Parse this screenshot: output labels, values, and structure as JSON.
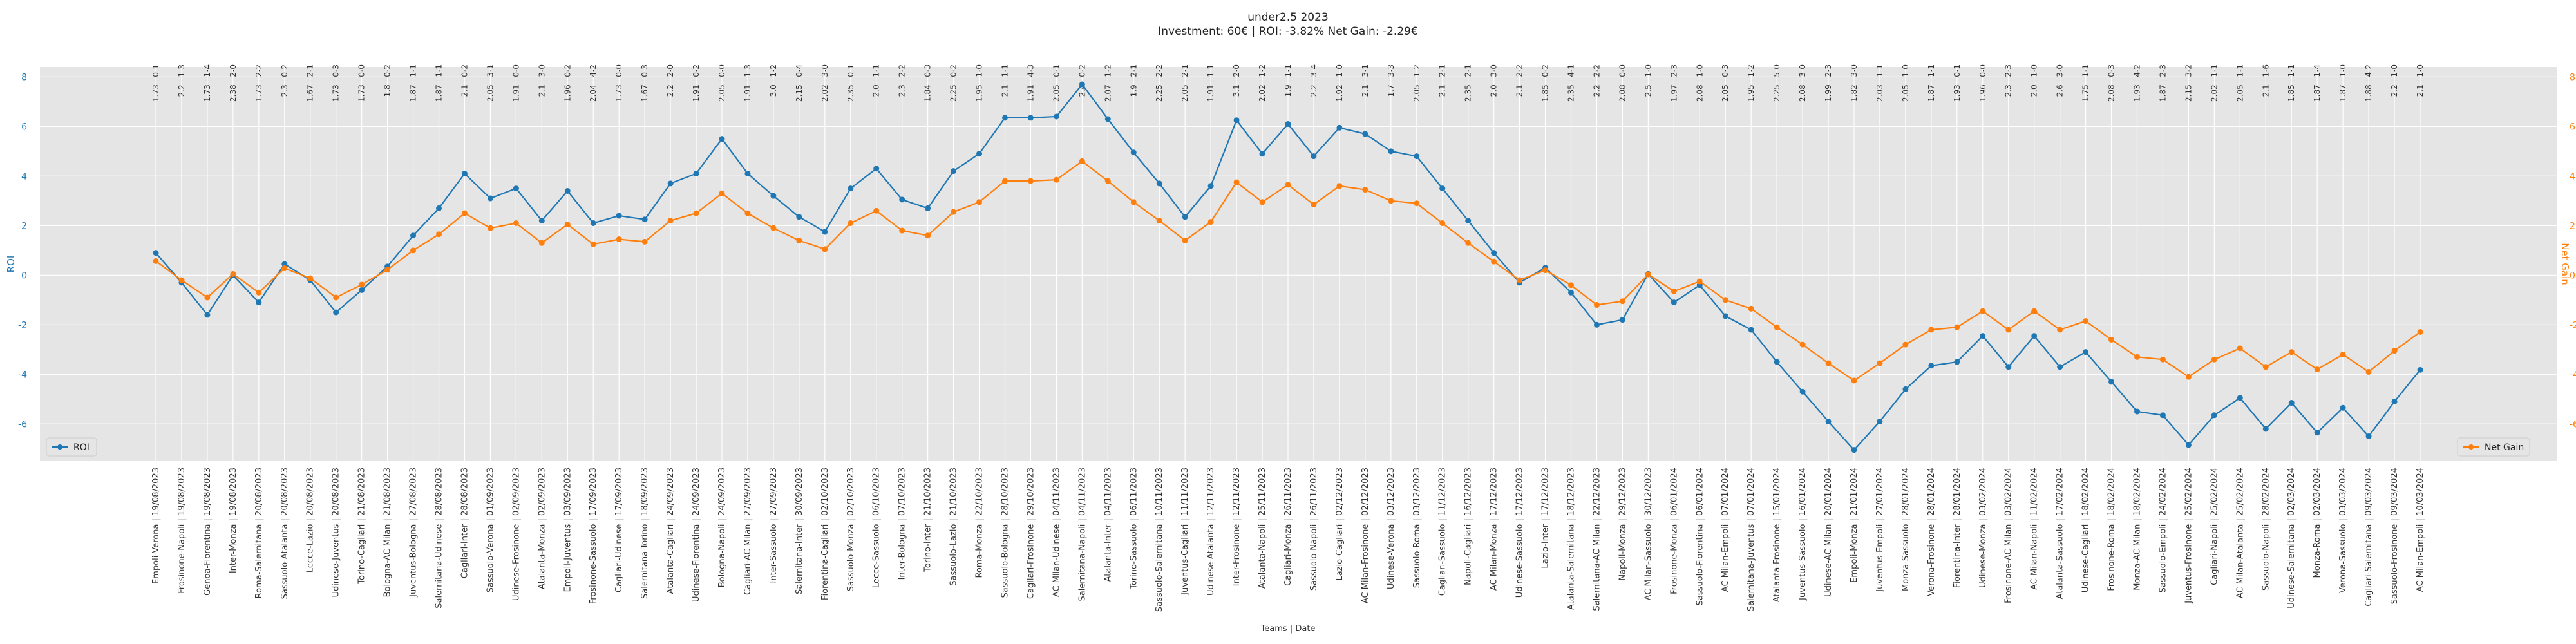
{
  "chart_data": {
    "type": "line",
    "title_line1": "under2.5 2023",
    "title_line2": "Investment: 60€ | ROI: -3.82% Net Gain: -2.29€",
    "xlabel": "Teams | Date",
    "ylabel_left": "ROI",
    "ylabel_right": "Net Gain",
    "ylim": [
      -7.5,
      8.4
    ],
    "yticks": [
      -6,
      -4,
      -2,
      0,
      2,
      4,
      6,
      8
    ],
    "grid": true,
    "legend_left": "bottom-left",
    "legend_right": "bottom-right",
    "colors": {
      "roi": "#1f77b4",
      "net_gain": "#ff7f0e",
      "plot_bg": "#e5e5e5",
      "grid": "#ffffff"
    },
    "matches": [
      {
        "label": "Empoli-Verona | 19/08/2023",
        "odds": "1.73 | 0-1",
        "roi": 0.9,
        "net": 0.57
      },
      {
        "label": "Frosinone-Napoli | 19/08/2023",
        "odds": "2.2 | 1-3",
        "roi": -0.3,
        "net": -0.2
      },
      {
        "label": "Genoa-Fiorentina | 19/08/2023",
        "odds": "1.73 | 1-4",
        "roi": -1.6,
        "net": -0.9
      },
      {
        "label": "Inter-Monza | 19/08/2023",
        "odds": "2.38 | 2-0",
        "roi": 0.0,
        "net": 0.05
      },
      {
        "label": "Roma-Salernitana | 20/08/2023",
        "odds": "1.73 | 2-2",
        "roi": -1.1,
        "net": -0.7
      },
      {
        "label": "Sassuolo-Atalanta | 20/08/2023",
        "odds": "2.3 | 0-2",
        "roi": 0.45,
        "net": 0.28
      },
      {
        "label": "Lecce-Lazio | 20/08/2023",
        "odds": "1.67 | 2-1",
        "roi": -0.2,
        "net": -0.12
      },
      {
        "label": "Udinese-Juventus | 20/08/2023",
        "odds": "1.73 | 0-3",
        "roi": -1.5,
        "net": -0.9
      },
      {
        "label": "Torino-Cagliari | 21/08/2023",
        "odds": "1.73 | 0-0",
        "roi": -0.6,
        "net": -0.38
      },
      {
        "label": "Bologna-AC Milan | 21/08/2023",
        "odds": "1.8 | 0-2",
        "roi": 0.35,
        "net": 0.22
      },
      {
        "label": "Juventus-Bologna | 27/08/2023",
        "odds": "1.87 | 1-1",
        "roi": 1.6,
        "net": 1.0
      },
      {
        "label": "Salernitana-Udinese | 28/08/2023",
        "odds": "1.87 | 1-1",
        "roi": 2.7,
        "net": 1.65
      },
      {
        "label": "Cagliari-Inter | 28/08/2023",
        "odds": "2.1 | 0-2",
        "roi": 4.1,
        "net": 2.5
      },
      {
        "label": "Sassuolo-Verona | 01/09/2023",
        "odds": "2.05 | 3-1",
        "roi": 3.1,
        "net": 1.9
      },
      {
        "label": "Udinese-Frosinone | 02/09/2023",
        "odds": "1.91 | 0-0",
        "roi": 3.5,
        "net": 2.1
      },
      {
        "label": "Atalanta-Monza | 02/09/2023",
        "odds": "2.1 | 3-0",
        "roi": 2.2,
        "net": 1.3
      },
      {
        "label": "Empoli-Juventus | 03/09/2023",
        "odds": "1.96 | 0-2",
        "roi": 3.4,
        "net": 2.05
      },
      {
        "label": "Frosinone-Sassuolo | 17/09/2023",
        "odds": "2.04 | 4-2",
        "roi": 2.1,
        "net": 1.25
      },
      {
        "label": "Cagliari-Udinese | 17/09/2023",
        "odds": "1.73 | 0-0",
        "roi": 2.4,
        "net": 1.45
      },
      {
        "label": "Salernitana-Torino | 18/09/2023",
        "odds": "1.67 | 0-3",
        "roi": 2.25,
        "net": 1.35
      },
      {
        "label": "Atalanta-Cagliari | 24/09/2023",
        "odds": "2.2 | 2-0",
        "roi": 3.7,
        "net": 2.2
      },
      {
        "label": "Udinese-Fiorentina | 24/09/2023",
        "odds": "1.91 | 0-2",
        "roi": 4.1,
        "net": 2.5
      },
      {
        "label": "Bologna-Napoli | 24/09/2023",
        "odds": "2.05 | 0-0",
        "roi": 5.5,
        "net": 3.3
      },
      {
        "label": "Cagliari-AC Milan | 27/09/2023",
        "odds": "1.91 | 1-3",
        "roi": 4.1,
        "net": 2.5
      },
      {
        "label": "Inter-Sassuolo | 27/09/2023",
        "odds": "3.0 | 1-2",
        "roi": 3.2,
        "net": 1.9
      },
      {
        "label": "Salernitana-Inter | 30/09/2023",
        "odds": "2.15 | 0-4",
        "roi": 2.35,
        "net": 1.4
      },
      {
        "label": "Fiorentina-Cagliari | 02/10/2023",
        "odds": "2.02 | 3-0",
        "roi": 1.75,
        "net": 1.05
      },
      {
        "label": "Sassuolo-Monza | 02/10/2023",
        "odds": "2.35 | 0-1",
        "roi": 3.5,
        "net": 2.1
      },
      {
        "label": "Lecce-Sassuolo | 06/10/2023",
        "odds": "2.0 | 1-1",
        "roi": 4.3,
        "net": 2.6
      },
      {
        "label": "Inter-Bologna | 07/10/2023",
        "odds": "2.3 | 2-2",
        "roi": 3.05,
        "net": 1.8
      },
      {
        "label": "Torino-Inter | 21/10/2023",
        "odds": "1.84 | 0-3",
        "roi": 2.7,
        "net": 1.6
      },
      {
        "label": "Sassuolo-Lazio | 21/10/2023",
        "odds": "2.25 | 0-2",
        "roi": 4.2,
        "net": 2.55
      },
      {
        "label": "Roma-Monza | 22/10/2023",
        "odds": "1.95 | 1-0",
        "roi": 4.9,
        "net": 2.95
      },
      {
        "label": "Sassuolo-Bologna | 28/10/2023",
        "odds": "2.1 | 1-1",
        "roi": 6.35,
        "net": 3.8
      },
      {
        "label": "Cagliari-Frosinone | 29/10/2023",
        "odds": "1.91 | 4-3",
        "roi": 6.35,
        "net": 3.8
      },
      {
        "label": "AC Milan-Udinese | 04/11/2023",
        "odds": "2.05 | 0-1",
        "roi": 6.4,
        "net": 3.85
      },
      {
        "label": "Salernitana-Napoli | 04/11/2023",
        "odds": "2.4 | 0-2",
        "roi": 7.7,
        "net": 4.6
      },
      {
        "label": "Atalanta-Inter | 04/11/2023",
        "odds": "2.07 | 1-2",
        "roi": 6.3,
        "net": 3.8
      },
      {
        "label": "Torino-Sassuolo | 06/11/2023",
        "odds": "1.9 | 2-1",
        "roi": 4.95,
        "net": 2.95
      },
      {
        "label": "Sassuolo-Salernitana | 10/11/2023",
        "odds": "2.25 | 2-2",
        "roi": 3.7,
        "net": 2.2
      },
      {
        "label": "Juventus-Cagliari | 11/11/2023",
        "odds": "2.05 | 2-1",
        "roi": 2.35,
        "net": 1.4
      },
      {
        "label": "Udinese-Atalanta | 12/11/2023",
        "odds": "1.91 | 1-1",
        "roi": 3.6,
        "net": 2.15
      },
      {
        "label": "Inter-Frosinone | 12/11/2023",
        "odds": "3.1 | 2-0",
        "roi": 6.25,
        "net": 3.75
      },
      {
        "label": "Atalanta-Napoli | 25/11/2023",
        "odds": "2.02 | 1-2",
        "roi": 4.9,
        "net": 2.95
      },
      {
        "label": "Cagliari-Monza | 26/11/2023",
        "odds": "1.9 | 1-1",
        "roi": 6.1,
        "net": 3.65
      },
      {
        "label": "Sassuolo-Napoli | 26/11/2023",
        "odds": "2.2 | 3-4",
        "roi": 4.8,
        "net": 2.85
      },
      {
        "label": "Lazio-Cagliari | 02/12/2023",
        "odds": "1.92 | 1-0",
        "roi": 5.95,
        "net": 3.6
      },
      {
        "label": "AC Milan-Frosinone | 02/12/2023",
        "odds": "2.1 | 3-1",
        "roi": 5.7,
        "net": 3.45
      },
      {
        "label": "Udinese-Verona | 03/12/2023",
        "odds": "1.7 | 3-3",
        "roi": 5.0,
        "net": 3.0
      },
      {
        "label": "Sassuolo-Roma | 03/12/2023",
        "odds": "2.05 | 1-2",
        "roi": 4.8,
        "net": 2.9
      },
      {
        "label": "Cagliari-Sassuolo | 11/12/2023",
        "odds": "2.1 | 2-1",
        "roi": 3.5,
        "net": 2.1
      },
      {
        "label": "Napoli-Cagliari | 16/12/2023",
        "odds": "2.35 | 2-1",
        "roi": 2.2,
        "net": 1.3
      },
      {
        "label": "AC Milan-Monza | 17/12/2023",
        "odds": "2.0 | 3-0",
        "roi": 0.9,
        "net": 0.55
      },
      {
        "label": "Udinese-Sassuolo | 17/12/2023",
        "odds": "2.1 | 2-2",
        "roi": -0.3,
        "net": -0.2
      },
      {
        "label": "Lazio-Inter | 17/12/2023",
        "odds": "1.85 | 0-2",
        "roi": 0.3,
        "net": 0.2
      },
      {
        "label": "Atalanta-Salernitana | 18/12/2023",
        "odds": "2.35 | 4-1",
        "roi": -0.7,
        "net": -0.4
      },
      {
        "label": "Salernitana-AC Milan | 22/12/2023",
        "odds": "2.2 | 2-2",
        "roi": -2.0,
        "net": -1.2
      },
      {
        "label": "Napoli-Monza | 29/12/2023",
        "odds": "2.08 | 0-0",
        "roi": -1.8,
        "net": -1.05
      },
      {
        "label": "AC Milan-Sassuolo | 30/12/2023",
        "odds": "2.5 | 1-0",
        "roi": 0.05,
        "net": 0.03
      },
      {
        "label": "Frosinone-Monza | 06/01/2024",
        "odds": "1.97 | 2-3",
        "roi": -1.1,
        "net": -0.65
      },
      {
        "label": "Sassuolo-Fiorentina | 06/01/2024",
        "odds": "2.08 | 1-0",
        "roi": -0.4,
        "net": -0.25
      },
      {
        "label": "AC Milan-Empoli | 07/01/2024",
        "odds": "2.05 | 0-3",
        "roi": -1.65,
        "net": -1.0
      },
      {
        "label": "Salernitana-Juventus | 07/01/2024",
        "odds": "1.95 | 1-2",
        "roi": -2.2,
        "net": -1.35
      },
      {
        "label": "Atalanta-Frosinone | 15/01/2024",
        "odds": "2.25 | 5-0",
        "roi": -3.5,
        "net": -2.1
      },
      {
        "label": "Juventus-Sassuolo | 16/01/2024",
        "odds": "2.08 | 3-0",
        "roi": -4.7,
        "net": -2.8
      },
      {
        "label": "Udinese-AC Milan | 20/01/2024",
        "odds": "1.99 | 2-3",
        "roi": -5.9,
        "net": -3.55
      },
      {
        "label": "Empoli-Monza | 21/01/2024",
        "odds": "1.82 | 3-0",
        "roi": -7.05,
        "net": -4.25
      },
      {
        "label": "Juventus-Empoli | 27/01/2024",
        "odds": "2.03 | 1-1",
        "roi": -5.9,
        "net": -3.55
      },
      {
        "label": "Monza-Sassuolo | 28/01/2024",
        "odds": "2.05 | 1-0",
        "roi": -4.6,
        "net": -2.8
      },
      {
        "label": "Verona-Frosinone | 28/01/2024",
        "odds": "1.87 | 1-1",
        "roi": -3.65,
        "net": -2.2
      },
      {
        "label": "Fiorentina-Inter | 28/01/2024",
        "odds": "1.93 | 0-1",
        "roi": -3.5,
        "net": -2.1
      },
      {
        "label": "Udinese-Monza | 03/02/2024",
        "odds": "1.96 | 0-0",
        "roi": -2.45,
        "net": -1.45
      },
      {
        "label": "Frosinone-AC Milan | 03/02/2024",
        "odds": "2.3 | 2-3",
        "roi": -3.7,
        "net": -2.2
      },
      {
        "label": "AC Milan-Napoli | 11/02/2024",
        "odds": "2.0 | 1-0",
        "roi": -2.45,
        "net": -1.45
      },
      {
        "label": "Atalanta-Sassuolo | 17/02/2024",
        "odds": "2.6 | 3-0",
        "roi": -3.7,
        "net": -2.2
      },
      {
        "label": "Udinese-Cagliari | 18/02/2024",
        "odds": "1.75 | 1-1",
        "roi": -3.1,
        "net": -1.85
      },
      {
        "label": "Frosinone-Roma | 18/02/2024",
        "odds": "2.08 | 0-3",
        "roi": -4.3,
        "net": -2.6
      },
      {
        "label": "Monza-AC Milan | 18/02/2024",
        "odds": "1.93 | 4-2",
        "roi": -5.5,
        "net": -3.3
      },
      {
        "label": "Sassuolo-Empoli | 24/02/2024",
        "odds": "1.87 | 2-3",
        "roi": -5.65,
        "net": -3.4
      },
      {
        "label": "Juventus-Frosinone | 25/02/2024",
        "odds": "2.15 | 3-2",
        "roi": -6.85,
        "net": -4.1
      },
      {
        "label": "Cagliari-Napoli | 25/02/2024",
        "odds": "2.02 | 1-1",
        "roi": -5.65,
        "net": -3.4
      },
      {
        "label": "AC Milan-Atalanta | 25/02/2024",
        "odds": "2.05 | 1-1",
        "roi": -4.95,
        "net": -2.95
      },
      {
        "label": "Sassuolo-Napoli | 28/02/2024",
        "odds": "2.1 | 1-6",
        "roi": -6.2,
        "net": -3.7
      },
      {
        "label": "Udinese-Salernitana | 02/03/2024",
        "odds": "1.85 | 1-1",
        "roi": -5.15,
        "net": -3.1
      },
      {
        "label": "Monza-Roma | 02/03/2024",
        "odds": "1.87 | 1-4",
        "roi": -6.35,
        "net": -3.8
      },
      {
        "label": "Verona-Sassuolo | 03/03/2024",
        "odds": "1.87 | 1-0",
        "roi": -5.35,
        "net": -3.2
      },
      {
        "label": "Cagliari-Salernitana | 09/03/2024",
        "odds": "1.88 | 4-2",
        "roi": -6.5,
        "net": -3.9
      },
      {
        "label": "Sassuolo-Frosinone | 09/03/2024",
        "odds": "2.2 | 1-0",
        "roi": -5.1,
        "net": -3.05
      },
      {
        "label": "AC Milan-Empoli | 10/03/2024",
        "odds": "2.1 | 1-0",
        "roi": -3.82,
        "net": -2.29
      }
    ]
  }
}
